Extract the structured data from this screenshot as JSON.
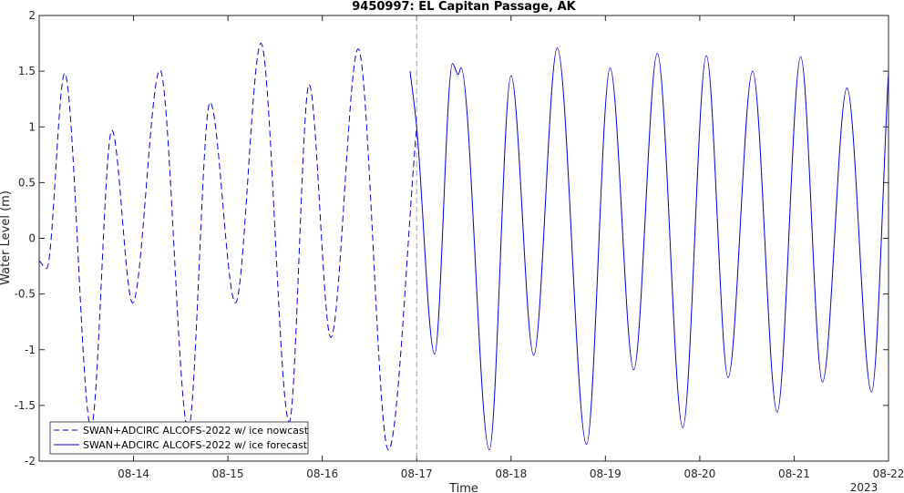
{
  "chart_data": {
    "type": "line",
    "title": "9450997: EL Capitan Passage, AK",
    "xlabel": "Time",
    "ylabel": "Water Level (m)",
    "ylim": [
      -2,
      2
    ],
    "xlim_days": [
      13.0,
      22.0
    ],
    "yticks": [
      -2,
      -1.5,
      -1,
      -0.5,
      0,
      0.5,
      1,
      1.5,
      2
    ],
    "ytick_labels": [
      "-2",
      "-1.5",
      "-1",
      "-0.5",
      "0",
      "0.5",
      "1",
      "1.5",
      "2"
    ],
    "xticks": [
      {
        "day": 14,
        "label": "08-14"
      },
      {
        "day": 15,
        "label": "08-15"
      },
      {
        "day": 16,
        "label": "08-16"
      },
      {
        "day": 17,
        "label": "08-17"
      },
      {
        "day": 18,
        "label": "08-18"
      },
      {
        "day": 19,
        "label": "08-19"
      },
      {
        "day": 20,
        "label": "08-20"
      },
      {
        "day": 21,
        "label": "08-21"
      },
      {
        "day": 22,
        "label": "08-22"
      }
    ],
    "year_label": "2023",
    "grid": false,
    "legend_position": "bottom-left",
    "nowcast_marker_day": 17.0,
    "series": [
      {
        "name": "SWAN+ADCIRC ALCOFS-2022 w/ ice nowcast",
        "style": "dashed",
        "color": "#0000dd",
        "x_days": [
          13.0,
          13.08,
          13.27,
          13.55,
          13.77,
          13.99,
          14.28,
          14.58,
          14.81,
          15.08,
          15.35,
          15.65,
          15.86,
          16.09,
          16.38,
          16.7,
          17.0
        ],
        "y": [
          -0.2,
          -0.27,
          1.48,
          -1.7,
          0.97,
          -0.58,
          1.51,
          -1.72,
          1.22,
          -0.58,
          1.75,
          -1.65,
          1.38,
          -0.89,
          1.7,
          -1.9,
          1.0
        ]
      },
      {
        "name": "SWAN+ADCIRC ALCOFS-2022 w/ ice forecast",
        "style": "solid",
        "color": "#0000dd",
        "x_days": [
          16.93,
          17.0,
          17.19,
          17.38,
          17.44,
          17.47,
          17.77,
          18.0,
          18.24,
          18.49,
          18.8,
          19.05,
          19.3,
          19.55,
          19.82,
          20.07,
          20.3,
          20.56,
          20.82,
          21.07,
          21.3,
          21.56,
          21.82,
          22.0
        ],
        "y": [
          1.5,
          1.0,
          -1.04,
          1.57,
          1.47,
          1.53,
          -1.9,
          1.46,
          -1.05,
          1.71,
          -1.85,
          1.53,
          -1.18,
          1.66,
          -1.7,
          1.64,
          -1.25,
          1.5,
          -1.56,
          1.63,
          -1.29,
          1.35,
          -1.38,
          1.5
        ]
      }
    ]
  },
  "colors": {
    "series": "#0000dd",
    "axis": "#262626",
    "marker_line": "#a0a0a0"
  }
}
